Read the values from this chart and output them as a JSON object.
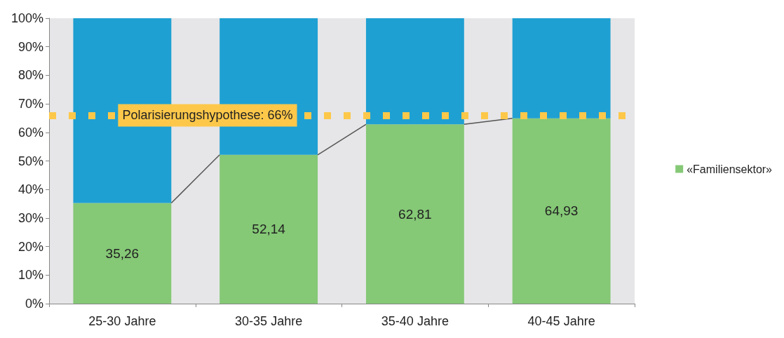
{
  "chart_data": {
    "type": "bar",
    "stacked": true,
    "categories": [
      "25-30 Jahre",
      "30-35 Jahre",
      "35-40 Jahre",
      "40-45 Jahre"
    ],
    "series": [
      {
        "name": "«Familiensektor»",
        "color": "#85c876",
        "values": [
          35.26,
          52.14,
          62.81,
          64.93
        ],
        "value_labels": [
          "35,26",
          "52,14",
          "62,81",
          "64,93"
        ]
      },
      {
        "color": "#1fa0d2",
        "values": [
          64.74,
          47.86,
          37.19,
          35.07
        ]
      }
    ],
    "ylim": [
      0,
      100
    ],
    "yticks": [
      {
        "value": 0,
        "label": "0%"
      },
      {
        "value": 10,
        "label": "10%"
      },
      {
        "value": 20,
        "label": "20%"
      },
      {
        "value": 30,
        "label": "30%"
      },
      {
        "value": 40,
        "label": "40%"
      },
      {
        "value": 50,
        "label": "50%"
      },
      {
        "value": 60,
        "label": "60%"
      },
      {
        "value": 70,
        "label": "70%"
      },
      {
        "value": 80,
        "label": "80%"
      },
      {
        "value": 90,
        "label": "90%"
      },
      {
        "value": 100,
        "label": "100%"
      }
    ],
    "ref_lines": [
      {
        "axis": "y",
        "value": 66,
        "label": "Polarisierungshypothese: 66%",
        "color": "#fdc84a",
        "line_style": "dotted"
      }
    ],
    "legend": "right",
    "grid": false
  }
}
